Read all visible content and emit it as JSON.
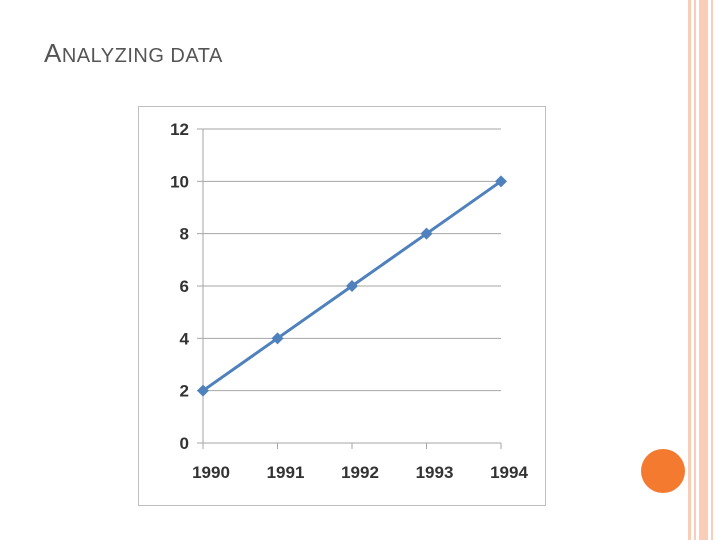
{
  "slide": {
    "title_first": "A",
    "title_rest": "NALYZING DATA"
  },
  "colors": {
    "accent_stripe": "#f9cdb8",
    "accent_circle": "#f47a30",
    "series": "#4f81bd",
    "grid": "#a6a6a6"
  },
  "chart_data": {
    "type": "line",
    "title": "",
    "xlabel": "",
    "ylabel": "",
    "x": [
      "1990",
      "1991",
      "1992",
      "1993",
      "1994"
    ],
    "series": [
      {
        "values": [
          2,
          4,
          6,
          8,
          10
        ],
        "marker": "diamond"
      }
    ],
    "ylim": [
      0,
      12
    ],
    "yticks": [
      0,
      2,
      4,
      6,
      8,
      10,
      12
    ],
    "ytick_labels": [
      "0",
      "2",
      "4",
      "6",
      "8",
      "10",
      "12"
    ],
    "grid": true,
    "legend": "none"
  }
}
